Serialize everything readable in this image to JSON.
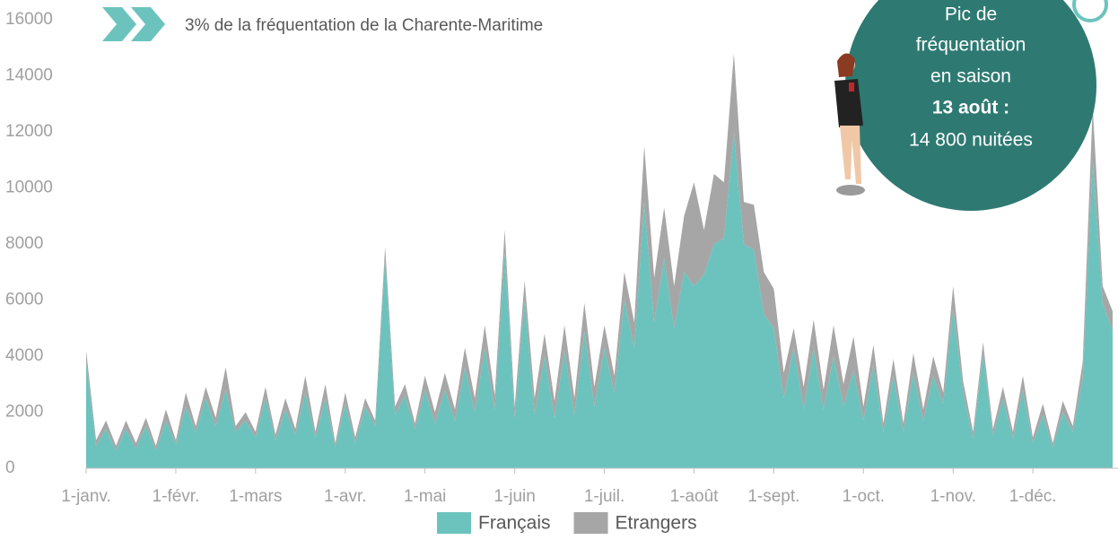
{
  "chart_data": {
    "type": "stacked-area",
    "subtitle": "3% de la fréquentation de la Charente-Maritime",
    "annotations": [
      "Pic de",
      "fréquentation",
      "en saison",
      "13 août :",
      "14 800 nuitées"
    ],
    "categories": [
      "1-janv.",
      null,
      null,
      null,
      null,
      null,
      null,
      null,
      null,
      "1-févr.",
      null,
      null,
      null,
      null,
      null,
      null,
      null,
      "1-mars",
      null,
      null,
      null,
      null,
      null,
      null,
      null,
      null,
      "1-avr.",
      null,
      null,
      null,
      null,
      null,
      null,
      null,
      "1-mai",
      null,
      null,
      null,
      null,
      null,
      null,
      null,
      null,
      "1-juin",
      null,
      null,
      null,
      null,
      null,
      null,
      null,
      null,
      "1-juil.",
      null,
      null,
      null,
      null,
      null,
      null,
      null,
      null,
      "1-août",
      null,
      null,
      null,
      null,
      null,
      null,
      null,
      "1-sept.",
      null,
      null,
      null,
      null,
      null,
      null,
      null,
      null,
      "1-oct.",
      null,
      null,
      null,
      null,
      null,
      null,
      null,
      null,
      "1-nov.",
      null,
      null,
      null,
      null,
      null,
      null,
      null,
      "1-déc.",
      null,
      null,
      null,
      null,
      null,
      null,
      null,
      null
    ],
    "series": [
      {
        "name": "Français",
        "color": "#6cc3bd",
        "values": [
          3800,
          800,
          1400,
          650,
          1400,
          700,
          1500,
          650,
          1700,
          850,
          2200,
          1300,
          2500,
          1500,
          2800,
          1300,
          1700,
          1100,
          2500,
          1000,
          2100,
          1200,
          2700,
          1100,
          2500,
          750,
          2300,
          900,
          2200,
          1500,
          7500,
          1900,
          2600,
          1400,
          2800,
          1600,
          2800,
          1700,
          3600,
          2000,
          4300,
          2100,
          7700,
          1800,
          6000,
          1900,
          4000,
          1800,
          4200,
          1900,
          4900,
          2200,
          4300,
          2700,
          6000,
          4300,
          9500,
          5200,
          7500,
          5000,
          7000,
          6500,
          6900,
          8000,
          8200,
          12000,
          8000,
          7800,
          5500,
          5000,
          2500,
          4300,
          2100,
          4300,
          2100,
          4000,
          2200,
          3500,
          1700,
          3700,
          1300,
          3300,
          1300,
          3400,
          1700,
          3300,
          2300,
          5700,
          2700,
          1050,
          4100,
          1150,
          2500,
          1050,
          2800,
          900,
          1900,
          750,
          2000,
          1300,
          3200,
          11000,
          5900,
          4900
        ]
      },
      {
        "name": "Etrangers",
        "color": "#a6a6a6",
        "values": [
          400,
          200,
          300,
          150,
          300,
          200,
          300,
          150,
          400,
          150,
          500,
          200,
          400,
          300,
          800,
          200,
          300,
          200,
          400,
          200,
          400,
          200,
          600,
          200,
          500,
          150,
          400,
          200,
          300,
          200,
          400,
          300,
          400,
          200,
          500,
          400,
          600,
          400,
          700,
          500,
          800,
          500,
          800,
          400,
          700,
          600,
          800,
          600,
          900,
          600,
          1000,
          700,
          800,
          600,
          1000,
          900,
          2000,
          1600,
          1800,
          1500,
          2000,
          3700,
          1600,
          2500,
          2000,
          2800,
          1500,
          1600,
          1500,
          1400,
          900,
          700,
          800,
          1000,
          700,
          1100,
          800,
          1200,
          500,
          700,
          300,
          600,
          300,
          700,
          400,
          700,
          400,
          800,
          400,
          250,
          400,
          250,
          400,
          250,
          500,
          200,
          400,
          150,
          400,
          200,
          600,
          1900,
          600,
          700
        ]
      }
    ],
    "ylim": [
      0,
      16000
    ],
    "yticks": [
      0,
      2000,
      4000,
      6000,
      8000,
      10000,
      12000,
      14000,
      16000
    ],
    "grid": false
  }
}
